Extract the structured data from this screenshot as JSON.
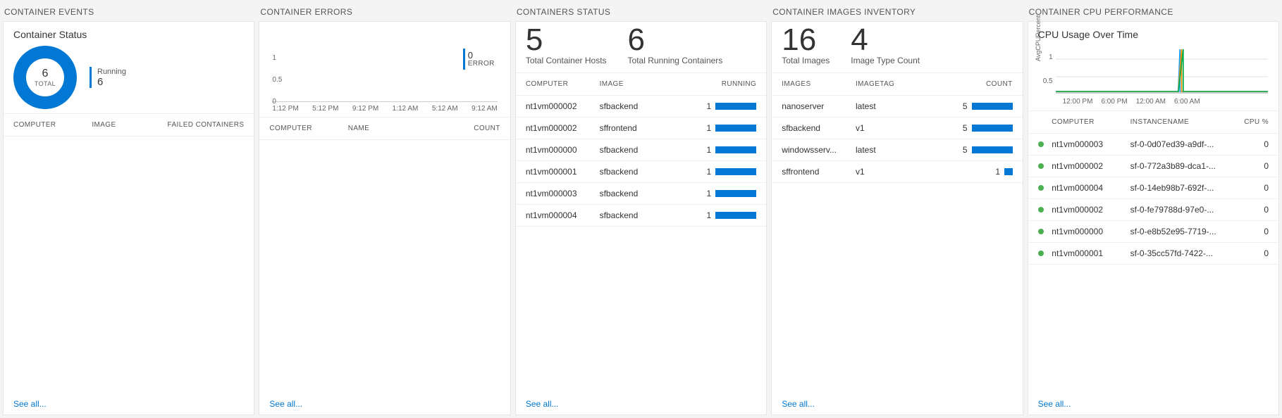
{
  "colors": {
    "accent": "#0078d4",
    "link": "#0078d4",
    "statusOk": "#4caf50",
    "gridline": "#e0e0e0",
    "panelBorder": "#e6e6e6",
    "cpuLineA": "#1aa3ff",
    "cpuLineB": "#ff8c00",
    "cpuLineC": "#00b050"
  },
  "seeAllLabel": "See all...",
  "events": {
    "header": "CONTAINER EVENTS",
    "title": "Container Status",
    "donut": {
      "total": "6",
      "totalLabel": "TOTAL",
      "segments": [
        {
          "label": "Running",
          "value": "6",
          "color": "#0078d4",
          "fraction": 1.0
        }
      ]
    },
    "columns": [
      "COMPUTER",
      "IMAGE",
      "FAILED CONTAINERS"
    ],
    "columnWidths": [
      "34%",
      "28%",
      "38%"
    ],
    "columnAlign": [
      "left",
      "left",
      "right"
    ],
    "rows": []
  },
  "errors": {
    "header": "CONTAINER ERRORS",
    "legend": {
      "value": "0",
      "label": "ERROR",
      "color": "#0078d4"
    },
    "chart": {
      "yticks": [
        "1",
        "0.5",
        "0"
      ],
      "xticks": [
        "1:12 PM",
        "5:12 PM",
        "9:12 PM",
        "1:12 AM",
        "5:12 AM",
        "9:12 AM"
      ],
      "series": [
        {
          "color": "#0078d4",
          "values": [
            0,
            0,
            0,
            0,
            0,
            0
          ]
        }
      ],
      "ylim": [
        0,
        1
      ]
    },
    "columns": [
      "COMPUTER",
      "NAME",
      "COUNT"
    ],
    "columnWidths": [
      "34%",
      "36%",
      "30%"
    ],
    "columnAlign": [
      "left",
      "left",
      "right"
    ],
    "rows": []
  },
  "status": {
    "header": "CONTAINERS STATUS",
    "metrics": [
      {
        "value": "5",
        "label": "Total Container Hosts"
      },
      {
        "value": "6",
        "label": "Total Running Containers"
      }
    ],
    "columns": [
      "COMPUTER",
      "IMAGE",
      "RUNNING"
    ],
    "columnWidths": [
      "32%",
      "32%",
      "36%"
    ],
    "columnAlign": [
      "left",
      "left",
      "right"
    ],
    "barMax": 1,
    "rows": [
      {
        "computer": "nt1vm000002",
        "image": "sfbackend",
        "count": "1",
        "bar": 1
      },
      {
        "computer": "nt1vm000002",
        "image": "sffrontend",
        "count": "1",
        "bar": 1
      },
      {
        "computer": "nt1vm000000",
        "image": "sfbackend",
        "count": "1",
        "bar": 1
      },
      {
        "computer": "nt1vm000001",
        "image": "sfbackend",
        "count": "1",
        "bar": 1
      },
      {
        "computer": "nt1vm000003",
        "image": "sfbackend",
        "count": "1",
        "bar": 1
      },
      {
        "computer": "nt1vm000004",
        "image": "sfbackend",
        "count": "1",
        "bar": 1
      }
    ]
  },
  "images": {
    "header": "CONTAINER IMAGES INVENTORY",
    "metrics": [
      {
        "value": "16",
        "label": "Total Images"
      },
      {
        "value": "4",
        "label": "Image Type Count"
      }
    ],
    "columns": [
      "IMAGES",
      "IMAGETAG",
      "COUNT"
    ],
    "columnWidths": [
      "32%",
      "32%",
      "36%"
    ],
    "columnAlign": [
      "left",
      "left",
      "right"
    ],
    "barMax": 5,
    "rows": [
      {
        "images": "nanoserver",
        "tag": "latest",
        "count": "5",
        "bar": 5
      },
      {
        "images": "sfbackend",
        "tag": "v1",
        "count": "5",
        "bar": 5
      },
      {
        "images": "windowsserv...",
        "tag": "latest",
        "count": "5",
        "bar": 5
      },
      {
        "images": "sffrontend",
        "tag": "v1",
        "count": "1",
        "bar": 1
      }
    ]
  },
  "cpu": {
    "header": "CONTAINER CPU PERFORMANCE",
    "title": "CPU Usage Over Time",
    "chart": {
      "ylabel": "AvgCPUPercent",
      "yticks": [
        "1",
        "0.5"
      ],
      "xticks": [
        "12:00 PM",
        "6:00 PM",
        "12:00 AM",
        "6:00 AM"
      ],
      "ylim": [
        0,
        1.4
      ],
      "gridColor": "#e0e0e0"
    },
    "columns": [
      "",
      "COMPUTER",
      "INSTANCENAME",
      "CPU %"
    ],
    "columnWidths": [
      "6%",
      "34%",
      "44%",
      "16%"
    ],
    "columnAlign": [
      "left",
      "left",
      "left",
      "right"
    ],
    "rows": [
      {
        "computer": "nt1vm000003",
        "instance": "sf-0-0d07ed39-a9df-...",
        "cpu": "0"
      },
      {
        "computer": "nt1vm000002",
        "instance": "sf-0-772a3b89-dca1-...",
        "cpu": "0"
      },
      {
        "computer": "nt1vm000004",
        "instance": "sf-0-14eb98b7-692f-...",
        "cpu": "0"
      },
      {
        "computer": "nt1vm000002",
        "instance": "sf-0-fe79788d-97e0-...",
        "cpu": "0"
      },
      {
        "computer": "nt1vm000000",
        "instance": "sf-0-e8b52e95-7719-...",
        "cpu": "0"
      },
      {
        "computer": "nt1vm000001",
        "instance": "sf-0-35cc57fd-7422-...",
        "cpu": "0"
      }
    ]
  }
}
